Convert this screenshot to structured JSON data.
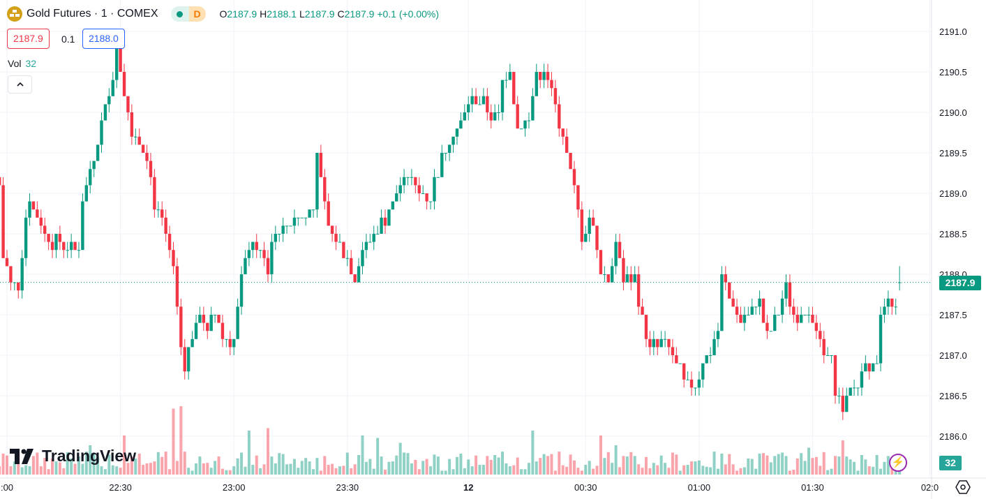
{
  "header": {
    "symbol_title": "Gold Futures · 1 · COMEX",
    "status_badge": "D",
    "ohlc": {
      "o_label": "O",
      "o": "2187.9",
      "h_label": "H",
      "h": "2188.1",
      "l_label": "L",
      "l": "2187.9",
      "c_label": "C",
      "c": "2187.9",
      "change": "+0.1 (+0.00%)"
    },
    "bid": "2187.9",
    "spread": "0.1",
    "ask": "2188.0",
    "vol_label": "Vol",
    "vol_value": "32"
  },
  "branding": "TradingView",
  "colors": {
    "up": "#089981",
    "down": "#f23645",
    "vol_up": "rgba(8,153,129,0.45)",
    "vol_down": "rgba(242,54,69,0.45)",
    "grid": "#f0f3fa"
  },
  "last_price_label": "2187.9",
  "last_volume_label": "32",
  "chart_data": {
    "type": "candlestick",
    "title": "Gold Futures · 1 · COMEX",
    "interval_minutes": 1,
    "ylim": [
      2185.75,
      2191.3
    ],
    "y_ticks": [
      "2191.0",
      "2190.5",
      "2190.0",
      "2189.5",
      "2189.0",
      "2188.5",
      "2188.0",
      "2187.5",
      "2187.0",
      "2186.5",
      "2186.0"
    ],
    "x_ticks": [
      {
        "label": ":00",
        "minute": 0
      },
      {
        "label": "22:30",
        "minute": 30
      },
      {
        "label": "23:00",
        "minute": 60
      },
      {
        "label": "23:30",
        "minute": 90
      },
      {
        "label": "12",
        "minute": 122
      },
      {
        "label": "00:30",
        "minute": 153
      },
      {
        "label": "01:00",
        "minute": 183
      },
      {
        "label": "01:30",
        "minute": 213
      },
      {
        "label": "02:0",
        "minute": 244
      }
    ],
    "xlim_minutes": [
      -2,
      246
    ],
    "close_path_minute_price": [
      [
        -2,
        2189.1
      ],
      [
        -1,
        2188.2
      ],
      [
        1,
        2187.9
      ],
      [
        3,
        2187.85
      ],
      [
        5,
        2188.7
      ],
      [
        6,
        2188.9
      ],
      [
        9,
        2188.6
      ],
      [
        10,
        2188.45
      ],
      [
        15,
        2188.35
      ],
      [
        19,
        2188.3
      ],
      [
        20,
        2188.9
      ],
      [
        22,
        2189.3
      ],
      [
        24,
        2189.6
      ],
      [
        26,
        2190.1
      ],
      [
        28,
        2190.4
      ],
      [
        29,
        2190.8
      ],
      [
        31,
        2190.3
      ],
      [
        33,
        2189.8
      ],
      [
        37,
        2189.5
      ],
      [
        39,
        2188.9
      ],
      [
        41,
        2188.6
      ],
      [
        43,
        2188.3
      ],
      [
        44,
        2188.0
      ],
      [
        45,
        2187.6
      ],
      [
        46,
        2187.1
      ],
      [
        47,
        2186.9
      ],
      [
        49,
        2187.2
      ],
      [
        51,
        2187.5
      ],
      [
        53,
        2187.3
      ],
      [
        55,
        2187.55
      ],
      [
        57,
        2187.2
      ],
      [
        60,
        2187.2
      ],
      [
        62,
        2187.9
      ],
      [
        64,
        2188.4
      ],
      [
        67,
        2188.3
      ],
      [
        69,
        2188.0
      ],
      [
        70,
        2188.5
      ],
      [
        74,
        2188.65
      ],
      [
        78,
        2188.7
      ],
      [
        81,
        2188.8
      ],
      [
        82,
        2189.6
      ],
      [
        83,
        2189.1
      ],
      [
        85,
        2188.55
      ],
      [
        88,
        2188.4
      ],
      [
        90,
        2188.2
      ],
      [
        92,
        2187.95
      ],
      [
        94,
        2188.3
      ],
      [
        98,
        2188.55
      ],
      [
        102,
        2188.85
      ],
      [
        105,
        2189.3
      ],
      [
        107,
        2189.2
      ],
      [
        109,
        2189.0
      ],
      [
        112,
        2188.95
      ],
      [
        114,
        2189.3
      ],
      [
        117,
        2189.65
      ],
      [
        120,
        2189.9
      ],
      [
        122,
        2190.1
      ],
      [
        126,
        2190.15
      ],
      [
        128,
        2189.9
      ],
      [
        130,
        2190.0
      ],
      [
        131,
        2190.35
      ],
      [
        133,
        2190.5
      ],
      [
        135,
        2189.8
      ],
      [
        138,
        2189.9
      ],
      [
        140,
        2190.45
      ],
      [
        142,
        2190.55
      ],
      [
        144,
        2190.2
      ],
      [
        146,
        2189.9
      ],
      [
        148,
        2189.5
      ],
      [
        150,
        2189.1
      ],
      [
        152,
        2188.45
      ],
      [
        154,
        2188.7
      ],
      [
        156,
        2188.4
      ],
      [
        157,
        2188.0
      ],
      [
        159,
        2187.8
      ],
      [
        161,
        2188.5
      ],
      [
        163,
        2187.9
      ],
      [
        166,
        2187.95
      ],
      [
        168,
        2187.4
      ],
      [
        170,
        2187.1
      ],
      [
        174,
        2187.15
      ],
      [
        177,
        2186.9
      ],
      [
        180,
        2186.6
      ],
      [
        182,
        2186.6
      ],
      [
        184,
        2186.95
      ],
      [
        186,
        2187.05
      ],
      [
        188,
        2187.3
      ],
      [
        189,
        2188.0
      ],
      [
        192,
        2187.6
      ],
      [
        194,
        2187.45
      ],
      [
        197,
        2187.55
      ],
      [
        199,
        2187.7
      ],
      [
        201,
        2187.2
      ],
      [
        203,
        2187.4
      ],
      [
        206,
        2187.9
      ],
      [
        207,
        2187.6
      ],
      [
        209,
        2187.5
      ],
      [
        212,
        2187.55
      ],
      [
        214,
        2187.3
      ],
      [
        216,
        2187.0
      ],
      [
        218,
        2186.9
      ],
      [
        219,
        2186.6
      ],
      [
        221,
        2186.3
      ],
      [
        223,
        2186.55
      ],
      [
        225,
        2186.6
      ],
      [
        227,
        2186.95
      ],
      [
        229,
        2186.85
      ],
      [
        230,
        2187.0
      ],
      [
        231,
        2187.5
      ],
      [
        233,
        2187.75
      ],
      [
        235,
        2187.5
      ],
      [
        236,
        2187.9
      ]
    ],
    "volume_spikes_minute_value": [
      [
        22,
        60
      ],
      [
        31,
        80
      ],
      [
        44,
        135
      ],
      [
        46,
        140
      ],
      [
        64,
        90
      ],
      [
        69,
        95
      ],
      [
        94,
        80
      ],
      [
        98,
        75
      ],
      [
        104,
        65
      ],
      [
        139,
        90
      ],
      [
        157,
        80
      ],
      [
        161,
        60
      ],
      [
        212,
        55
      ],
      [
        221,
        70
      ]
    ],
    "last_volume": 32
  }
}
